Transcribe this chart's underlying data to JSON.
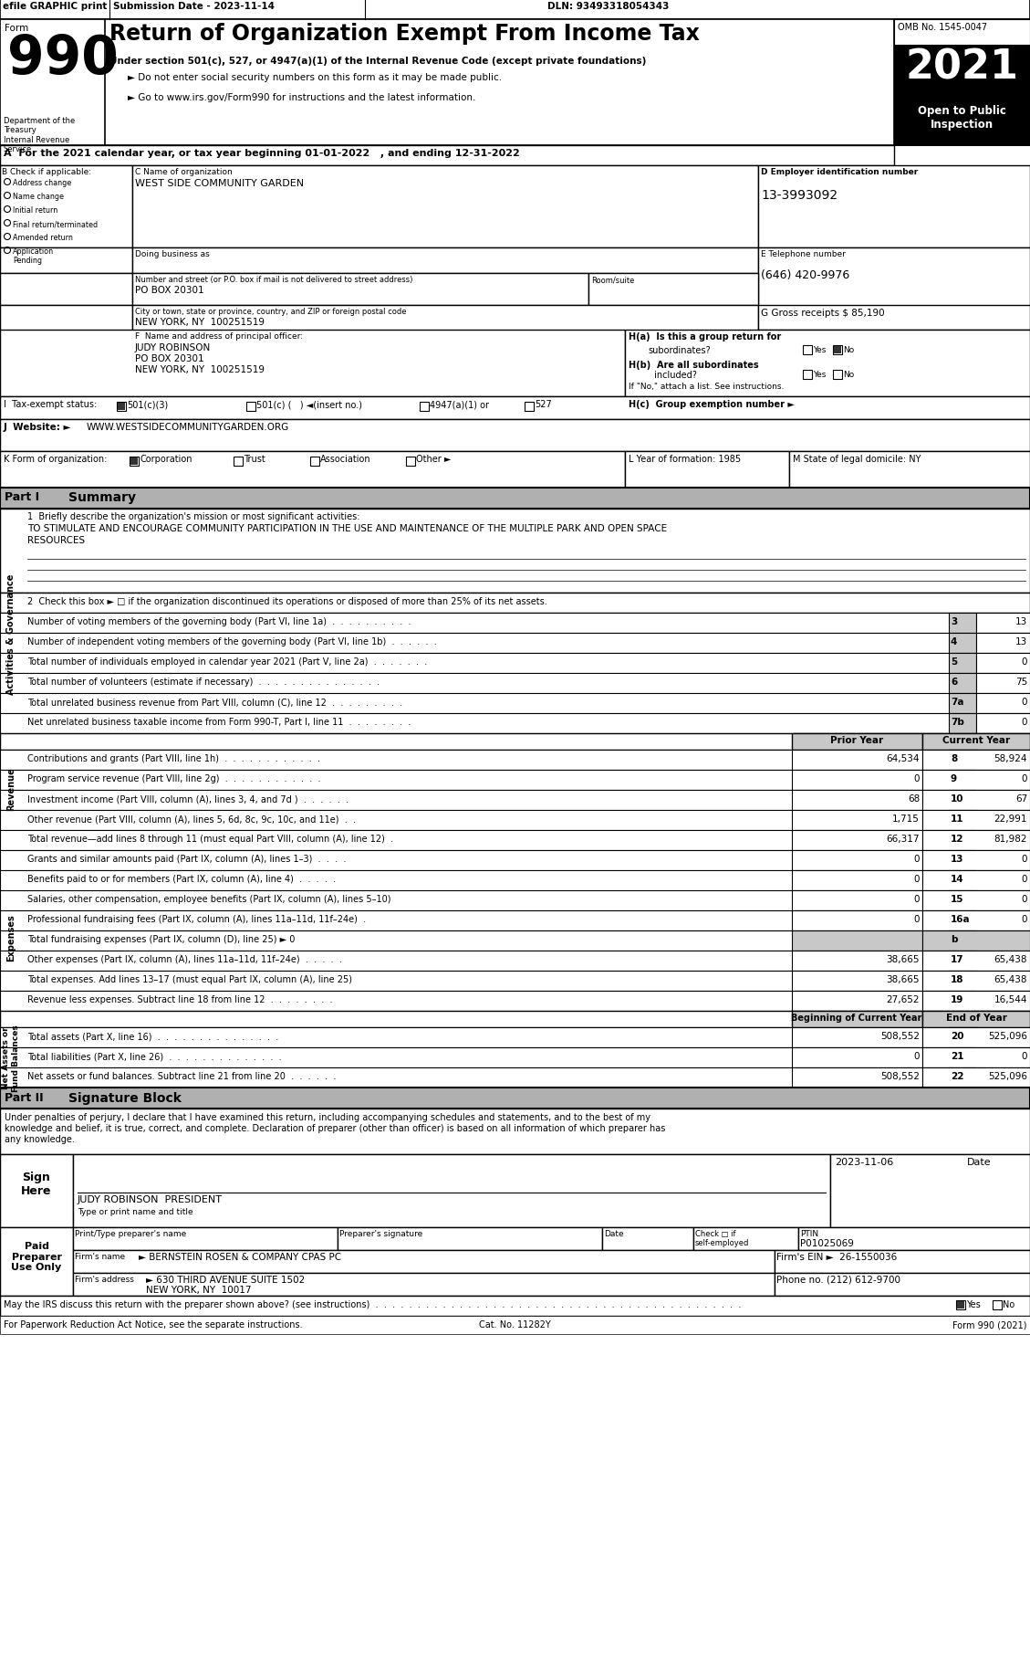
{
  "title": "Return of Organization Exempt From Income Tax",
  "form_number": "990",
  "year": "2021",
  "omb": "OMB No. 1545-0047",
  "efile_header": "efile GRAPHIC print",
  "submission_date": "Submission Date - 2023-11-14",
  "dln": "DLN: 93493318054343",
  "subtitle1": "Under section 501(c), 527, or 4947(a)(1) of the Internal Revenue Code (except private foundations)",
  "subtitle2": "► Do not enter social security numbers on this form as it may be made public.",
  "subtitle3": "► Go to www.irs.gov/Form990 for instructions and the latest information.",
  "open_to_public": "Open to Public\nInspection",
  "dept": "Department of the\nTreasury\nInternal Revenue\nService",
  "tax_year_line": "A  For the 2021 calendar year, or tax year beginning 01-01-2022   , and ending 12-31-2022",
  "org_name": "WEST SIDE COMMUNITY GARDEN",
  "ein": "13-3993092",
  "address": "PO BOX 20301",
  "city": "NEW YORK, NY  100251519",
  "phone": "(646) 420-9976",
  "gross_receipts": "G Gross receipts $ 85,190",
  "principal_officer": "JUDY ROBINSON\nPO BOX 20301\nNEW YORK, NY  100251519",
  "website": "WWW.WESTSIDECOMMUNITYGARDEN.ORG",
  "mission_line1": "TO STIMULATE AND ENCOURAGE COMMUNITY PARTICIPATION IN THE USE AND MAINTENANCE OF THE MULTIPLE PARK AND OPEN SPACE",
  "mission_line2": "RESOURCES",
  "preparer_ptin": "P01025069",
  "firm_name": "► BERNSTEIN ROSEN & COMPANY CPAS PC",
  "firm_ein": "26-1550036",
  "firm_address": "► 630 THIRD AVENUE SUITE 1502",
  "firm_city": "NEW YORK, NY  10017",
  "firm_phone": "(212) 612-9700",
  "bg_color": "#ffffff"
}
